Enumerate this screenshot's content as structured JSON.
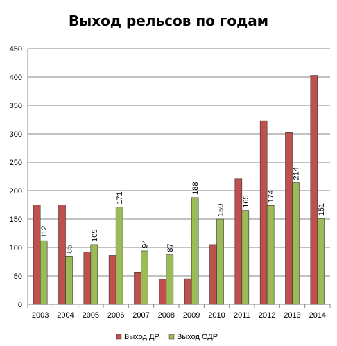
{
  "chart_data": {
    "type": "bar",
    "title": "Выход рельсов по годам",
    "categories": [
      "2003",
      "2004",
      "2005",
      "2006",
      "2007",
      "2008",
      "2009",
      "2010",
      "2011",
      "2012",
      "2013",
      "2014"
    ],
    "series": [
      {
        "name": "Выход ДР",
        "color": "#c0504d",
        "values": [
          175,
          175,
          92,
          86,
          57,
          44,
          45,
          105,
          221,
          323,
          302,
          403
        ]
      },
      {
        "name": "Выход ОДР",
        "color": "#9bbb59",
        "values": [
          112,
          85,
          105,
          171,
          94,
          87,
          188,
          150,
          165,
          174,
          214,
          151
        ],
        "labels": [
          "112",
          "85",
          "105",
          "171",
          "94",
          "87",
          "188",
          "150",
          "165",
          "174",
          "214",
          "151"
        ]
      }
    ],
    "ylim": [
      0,
      450
    ],
    "yticks": [
      0,
      50,
      100,
      150,
      200,
      250,
      300,
      350,
      400,
      450
    ],
    "grid": true,
    "legend": "bottom"
  }
}
